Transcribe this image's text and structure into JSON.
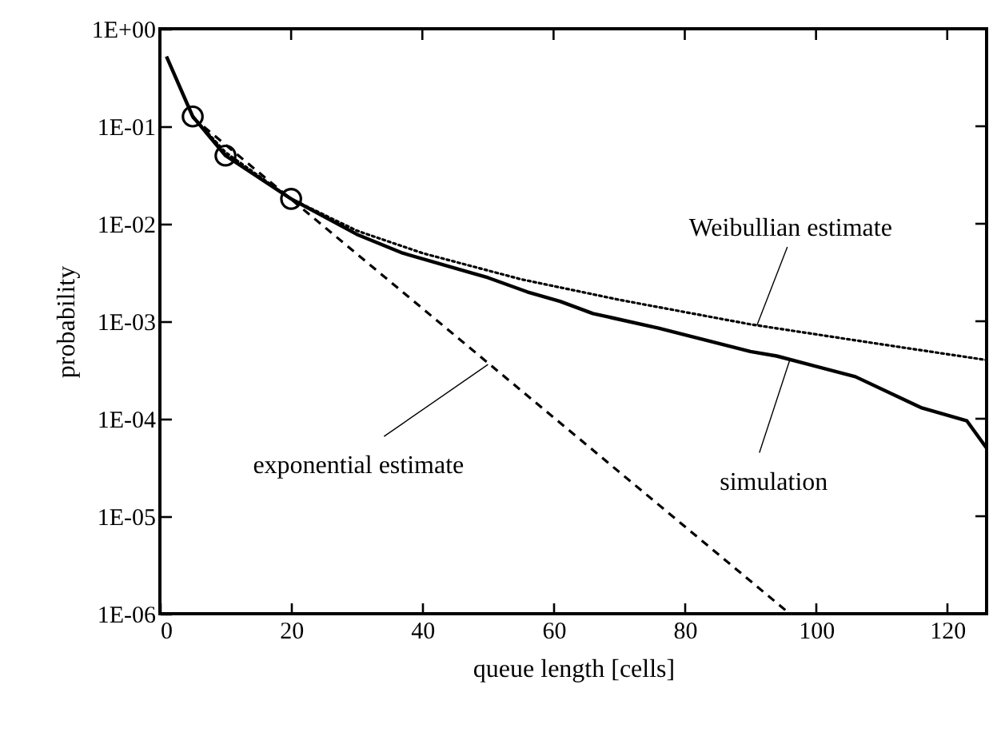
{
  "chart_data": {
    "type": "line",
    "xlabel": "queue length [cells]",
    "ylabel": "probability",
    "log": "y",
    "grid": false,
    "xlim": [
      0,
      126
    ],
    "xticks": [
      0,
      20,
      40,
      60,
      80,
      100,
      120
    ],
    "ylim": [
      1e-06,
      1
    ],
    "yticks": [
      {
        "value": 1,
        "label": "1E+00"
      },
      {
        "value": 0.1,
        "label": "1E-01"
      },
      {
        "value": 0.01,
        "label": "1E-02"
      },
      {
        "value": 0.001,
        "label": "1E-03"
      },
      {
        "value": 0.0001,
        "label": "1E-04"
      },
      {
        "value": 1e-05,
        "label": "1E-05"
      },
      {
        "value": 1e-06,
        "label": "1E-06"
      }
    ],
    "series": [
      {
        "color": "#000000",
        "line_style": "solid",
        "x": [
          1,
          5,
          10,
          20,
          30,
          37,
          47,
          50,
          56,
          61,
          66,
          76,
          90,
          94,
          106,
          116,
          123,
          126
        ],
        "values": [
          0.52,
          0.126,
          0.05,
          0.018,
          0.0078,
          0.005,
          0.0032,
          0.0028,
          0.002,
          0.0016,
          0.0012,
          0.00085,
          0.00049,
          0.00044,
          0.00027,
          0.00013,
          9.5e-05,
          5e-05
        ]
      },
      {
        "color": "#000000",
        "line_style": "dotted",
        "x": [
          5,
          10,
          20,
          30,
          40,
          55,
          70,
          90,
          110,
          126
        ],
        "values": [
          0.126,
          0.054,
          0.018,
          0.0085,
          0.005,
          0.0027,
          0.00166,
          0.00093,
          0.00058,
          0.0004
        ]
      },
      {
        "color": "#000000",
        "line_style": "dashed",
        "x": [
          5,
          96
        ],
        "values": [
          0.123,
          1e-06
        ]
      },
      {
        "type": "scatter",
        "color": "#000000",
        "marker": "circle",
        "x": [
          5,
          10,
          20
        ],
        "values": [
          0.126,
          0.05,
          0.018
        ]
      }
    ],
    "annotations": [
      {
        "text": "Weibullian estimate",
        "x": 91,
        "y": 0.00091
      },
      {
        "text": "simulation",
        "x": 96,
        "y": 0.0004
      },
      {
        "text": "exponential estimate",
        "x": 50,
        "y": 0.00036
      }
    ]
  }
}
